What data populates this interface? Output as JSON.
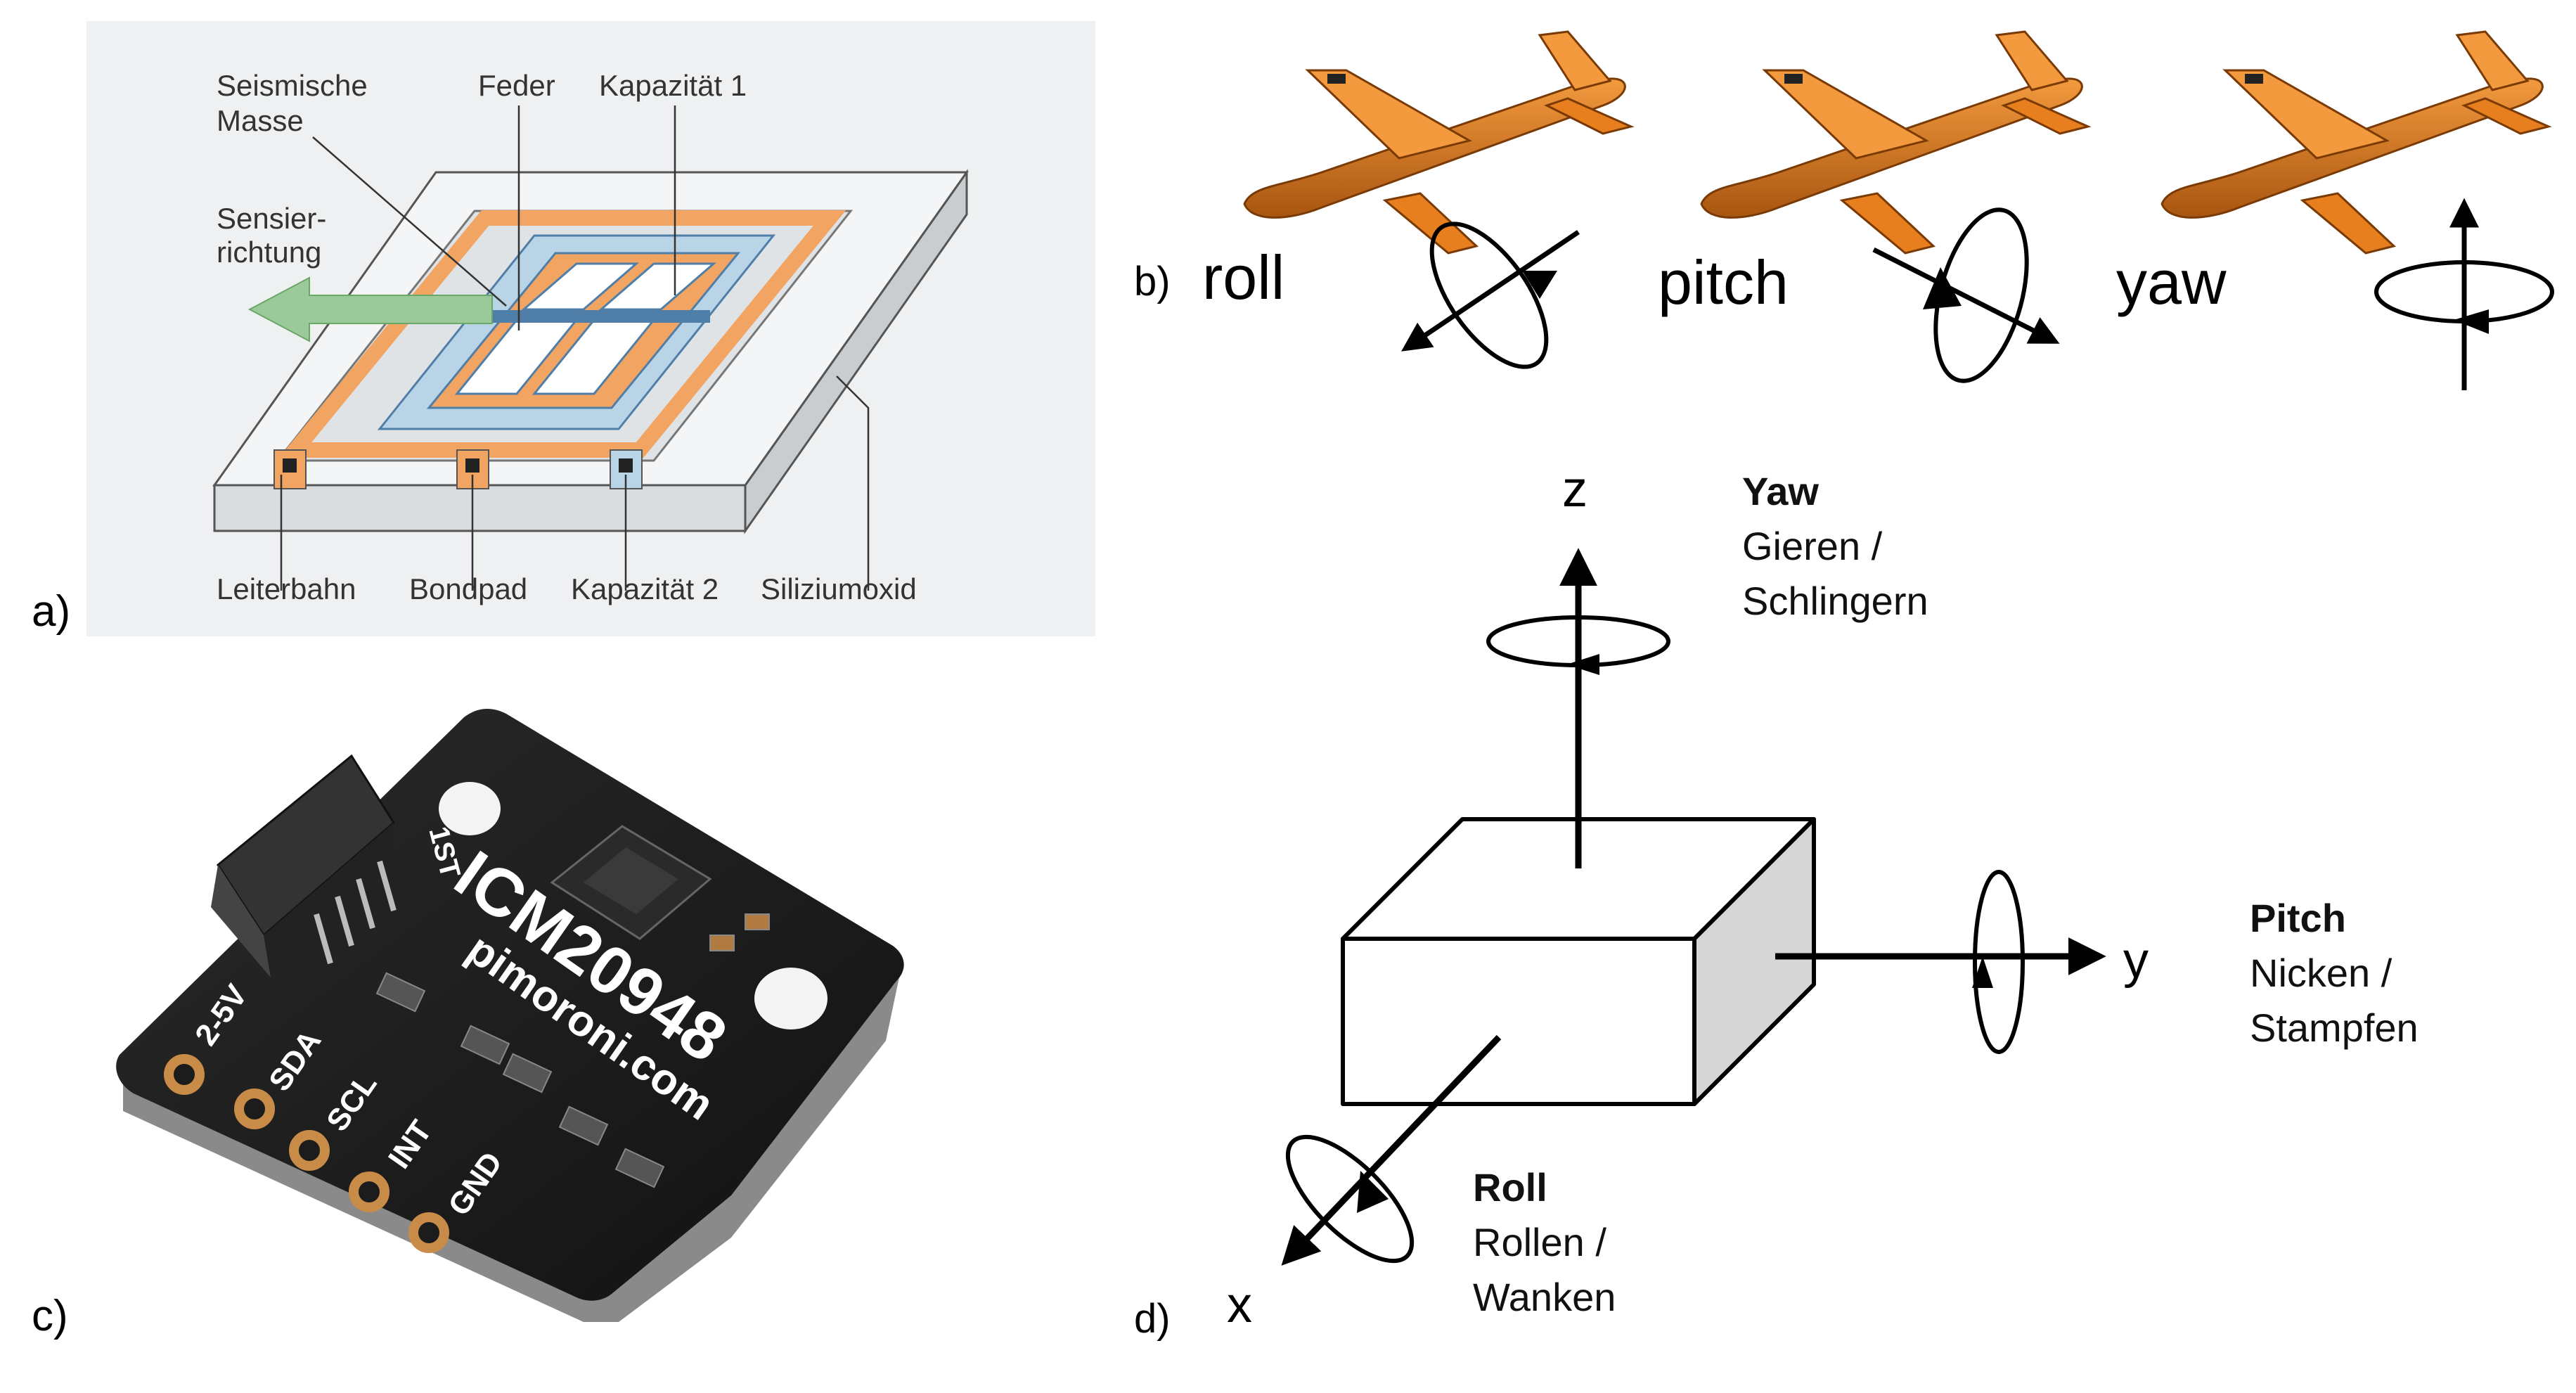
{
  "panels": {
    "a": {
      "letter": "a)",
      "labels": {
        "seismic_mass_1": "Seismische",
        "seismic_mass_2": "Masse",
        "spring": "Feder",
        "capacitance_1": "Kapazität 1",
        "sensing_1": "Sensier-",
        "sensing_2": "richtung",
        "conductor": "Leiterbahn",
        "bondpad": "Bondpad",
        "capacitance_2": "Kapazität 2",
        "silicon_oxide": "Siliziumoxid"
      }
    },
    "b": {
      "letter": "b)",
      "roll": "roll",
      "pitch": "pitch",
      "yaw": "yaw"
    },
    "c": {
      "letter": "c)",
      "board": {
        "chip_name": "ICM20948",
        "brand": "pimoroni.com",
        "pins": [
          "2-5V",
          "SDA",
          "SCL",
          "INT",
          "GND"
        ],
        "corner_mark": "1ST"
      }
    },
    "d": {
      "letter": "d)",
      "axes": {
        "z": "z",
        "y": "y",
        "x": "x"
      },
      "yaw": {
        "title": "Yaw",
        "line1": "Gieren /",
        "line2": "Schlingern"
      },
      "pitch": {
        "title": "Pitch",
        "line1": "Nicken /",
        "line2": "Stampfen"
      },
      "roll": {
        "title": "Roll",
        "line1": "Rollen /",
        "line2": "Wanken"
      }
    }
  },
  "colors": {
    "panel_a_bg": "#eef0f1",
    "orange": "#f2a463",
    "light_blue": "#b9d4e6",
    "blue_line": "#4f7fa8",
    "green_arrow": "#9cc99a",
    "plane_orange": "#e77f1e",
    "plane_dark": "#9a4a08",
    "pcb_black": "#1c1c1c",
    "pad_gold": "#c98c48",
    "box_side": "#d6d6d6"
  }
}
